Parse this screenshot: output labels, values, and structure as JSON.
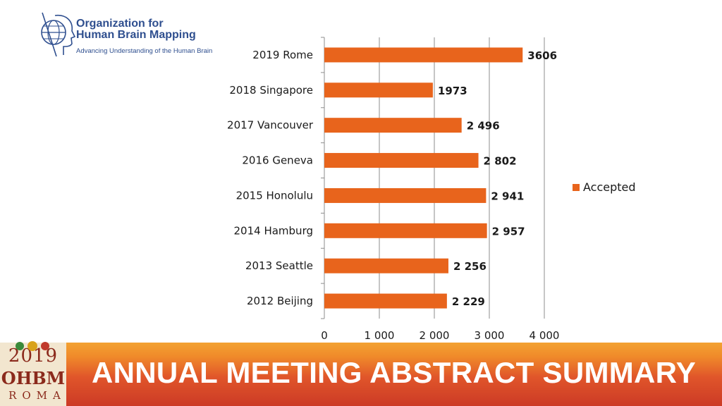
{
  "header": {
    "org_name_line1": "Organization for",
    "org_name_line2": "Human Brain Mapping",
    "org_tagline": "Advancing Understanding of the Human Brain",
    "logo_icon": "brain-head-icon"
  },
  "footer": {
    "title": "ANNUAL MEETING ABSTRACT SUMMARY",
    "badge_year": "2019",
    "badge_org": "OHBM",
    "badge_city": "ROMA",
    "gradient_colors": [
      "#f3a232",
      "#e0552a",
      "#cc3a26"
    ]
  },
  "chart_data": {
    "type": "bar",
    "orientation": "horizontal",
    "categories": [
      "2019 Rome",
      "2018 Singapore",
      "2017 Vancouver",
      "2016 Geneva",
      "2015 Honolulu",
      "2014 Hamburg",
      "2013 Seattle",
      "2012 Beijing"
    ],
    "series": [
      {
        "name": "Accepted",
        "color": "#e8641c",
        "values": [
          3606,
          1973,
          2496,
          2802,
          2941,
          2957,
          2256,
          2229
        ],
        "labels": [
          "3606",
          "1973",
          "2 496",
          "2 802",
          "2 941",
          "2 957",
          "2 256",
          "2 229"
        ]
      }
    ],
    "xlim": [
      0,
      4000
    ],
    "xticks": [
      0,
      1000,
      2000,
      3000,
      4000
    ],
    "xtick_labels": [
      "0",
      "1 000",
      "2 000",
      "3 000",
      "4 000"
    ],
    "grid": true,
    "legend": "right"
  }
}
